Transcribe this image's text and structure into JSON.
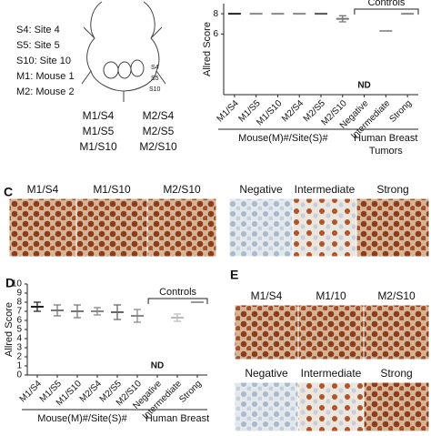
{
  "legend": [
    "S4: Site 4",
    "S5: Site 5",
    "S10: Site 10",
    "M1: Mouse 1",
    "M2: Mouse 2"
  ],
  "mouse_sites": [
    "S4",
    "S5",
    "S10"
  ],
  "sample_grid": [
    [
      "M1/S4",
      "M2/S4"
    ],
    [
      "M1/S5",
      "M2/S5"
    ],
    [
      "M1/S10",
      "M2/S10"
    ]
  ],
  "chart_data": [
    {
      "type": "errorbar",
      "ylabel": "Allred Score",
      "categories": [
        "M1/S4",
        "M1/S5",
        "M1/S10",
        "M2/S4",
        "M2/S5",
        "M2/S10",
        "Negative",
        "Intermediate",
        "Strong"
      ],
      "values": [
        8,
        8,
        8,
        8,
        8,
        7.5,
        null,
        6.3,
        8
      ],
      "errors": [
        null,
        null,
        null,
        null,
        null,
        0.3,
        null,
        null,
        null
      ],
      "colors": [
        "#222222",
        "#888888",
        "#888888",
        "#888888",
        "#555555",
        "#777777",
        "#888888",
        "#999999",
        "#888888"
      ],
      "ylim": [
        0,
        9
      ],
      "yticks": [
        6,
        8
      ],
      "missing_label": "ND",
      "bracket_label": "Controls",
      "group_labels": [
        "Mouse(M)#/Site(S)#",
        [
          "Human Breast",
          "Tumors"
        ]
      ]
    },
    {
      "type": "errorbar",
      "panel": "D",
      "ylabel": "Allred Score",
      "categories": [
        "M1/S4",
        "M1/S5",
        "M1/S10",
        "M2/S4",
        "M2/S5",
        "M2/S10",
        "Negative",
        "Intermediate",
        "Strong"
      ],
      "values": [
        7.5,
        7.1,
        7,
        7,
        6.9,
        6.5,
        null,
        6.3,
        8
      ],
      "errors": [
        0.5,
        0.6,
        0.7,
        0.4,
        0.8,
        0.7,
        null,
        0.4,
        null
      ],
      "colors": [
        "#222222",
        "#777777",
        "#777777",
        "#888888",
        "#666666",
        "#888888",
        "#888888",
        "#bbbbbb",
        "#999999"
      ],
      "ylim": [
        0,
        10
      ],
      "yticks": [
        0,
        1,
        2,
        3,
        4,
        5,
        6,
        7,
        8,
        9,
        10
      ],
      "missing_label": "ND",
      "bracket_label": "Controls",
      "group_labels": [
        "Mouse(M)#/Site(S)#",
        [
          "Human Breast"
        ]
      ]
    }
  ],
  "panel_c": {
    "label": "C",
    "images": [
      "M1/S4",
      "M1/S10",
      "M2/S10",
      "Negative",
      "Intermediate",
      "Strong"
    ]
  },
  "panel_e": {
    "label": "E",
    "images": [
      "M1/S4",
      "M1/10",
      "M2/S10",
      "Negative",
      "Intermediate",
      "Strong"
    ]
  }
}
